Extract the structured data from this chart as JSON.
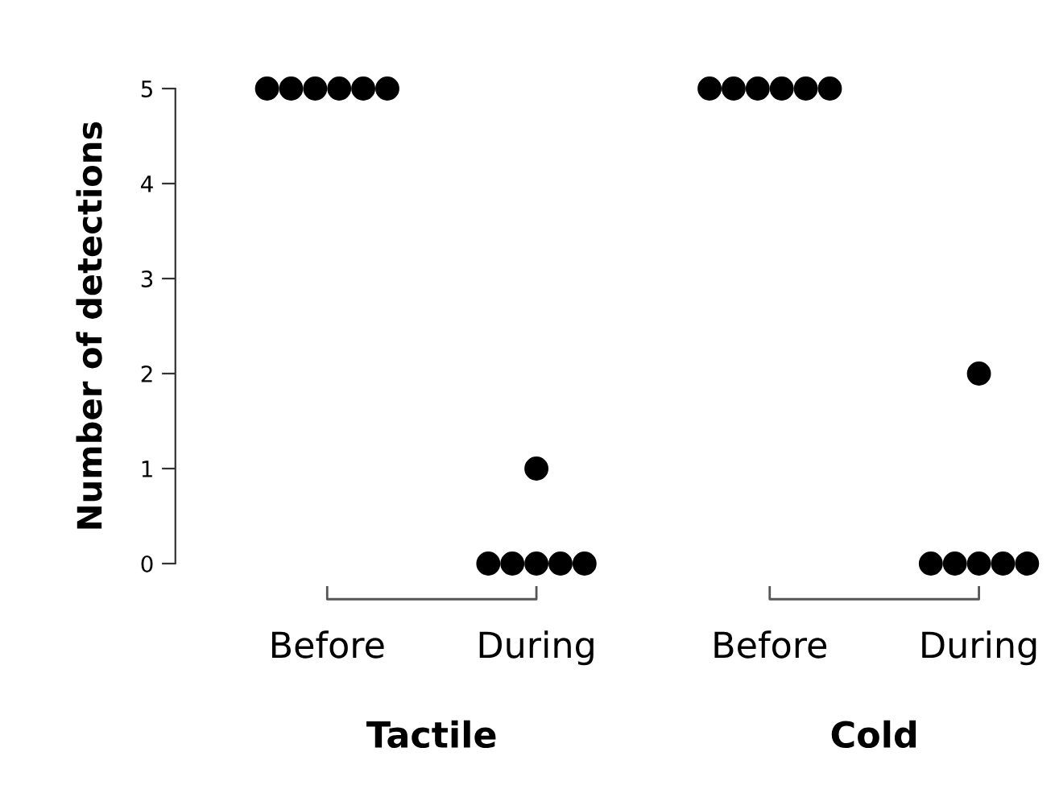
{
  "chart_data": {
    "type": "scatter",
    "ylabel": "Number of detections",
    "categories": [
      "Before",
      "During",
      "Before",
      "During"
    ],
    "series": [
      {
        "color": "#000000",
        "values": [
          5,
          1,
          5,
          2
        ]
      },
      {
        "color": "#000000",
        "values": [
          5,
          0,
          5,
          0
        ]
      },
      {
        "color": "#000000",
        "values": [
          5,
          0,
          5,
          0
        ]
      },
      {
        "color": "#000000",
        "values": [
          5,
          0,
          5,
          0
        ]
      },
      {
        "color": "#000000",
        "values": [
          5,
          0,
          5,
          0
        ]
      },
      {
        "color": "#000000",
        "values": [
          5,
          0,
          5,
          0
        ]
      }
    ],
    "ylim": [
      0,
      5
    ],
    "yticks": [
      0,
      1,
      2,
      3,
      4,
      5
    ],
    "marker": "circle",
    "grid": false,
    "legend": false,
    "annotations": [
      "Tactile",
      "Cold"
    ]
  }
}
